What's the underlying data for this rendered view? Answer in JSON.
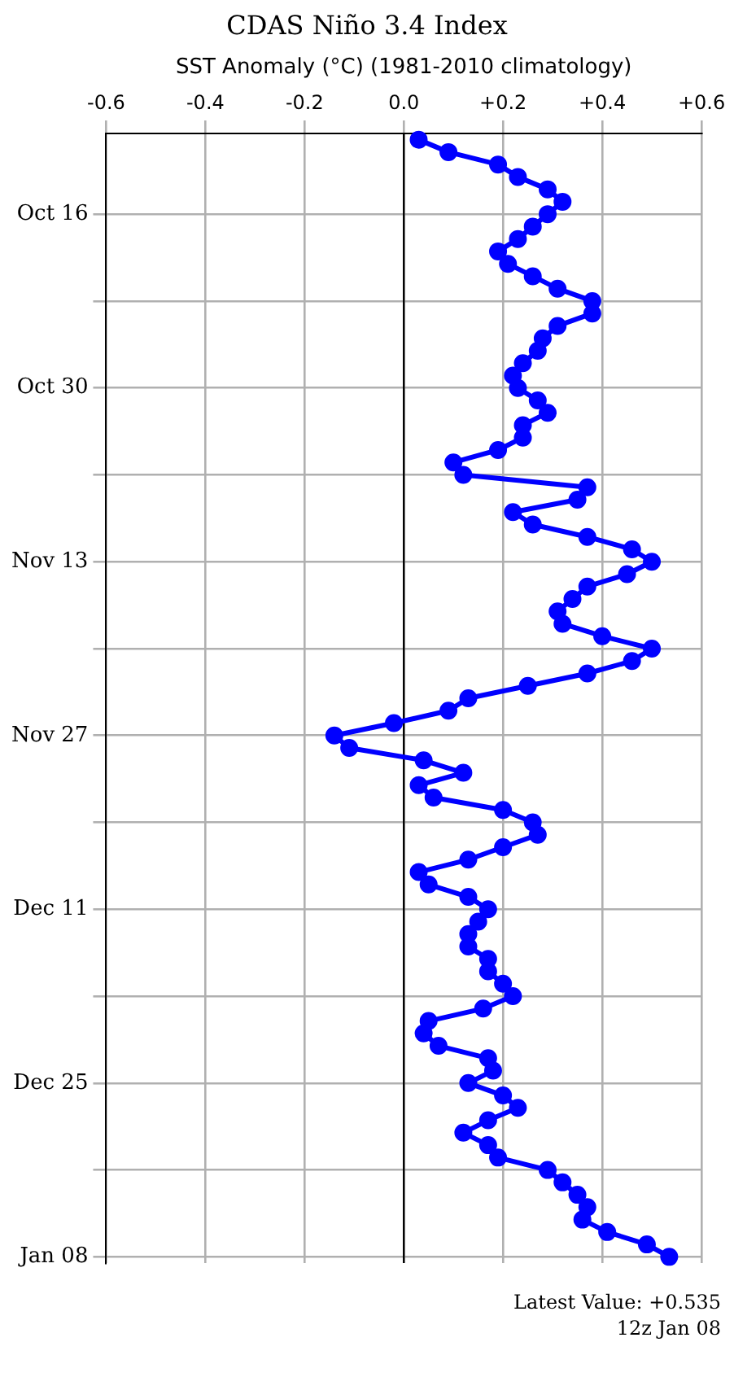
{
  "chart_data": {
    "type": "line",
    "orientation": "horizontal",
    "title": "CDAS Niño 3.4 Index",
    "xlabel": "SST Anomaly (°C) (1981-2010 climatology)",
    "annotations": [
      "Latest Value: +0.535",
      "12z Jan 08"
    ],
    "categories": [
      null,
      null,
      null,
      null,
      null,
      null,
      "Oct 16",
      null,
      null,
      null,
      null,
      null,
      null,
      null,
      null,
      null,
      null,
      null,
      null,
      null,
      "Oct 30",
      null,
      null,
      null,
      null,
      null,
      null,
      null,
      null,
      null,
      null,
      null,
      null,
      null,
      "Nov 13",
      null,
      null,
      null,
      null,
      null,
      null,
      null,
      null,
      null,
      null,
      null,
      null,
      null,
      "Nov 27",
      null,
      null,
      null,
      null,
      null,
      null,
      null,
      null,
      null,
      null,
      null,
      null,
      null,
      "Dec 11",
      null,
      null,
      null,
      null,
      null,
      null,
      null,
      null,
      null,
      null,
      null,
      null,
      null,
      "Dec 25",
      null,
      null,
      null,
      null,
      null,
      null,
      null,
      null,
      null,
      null,
      null,
      null,
      null,
      "Jan 08"
    ],
    "series": [
      {
        "color": "#0000ff",
        "values": [
          0.03,
          0.09,
          0.19,
          0.23,
          0.29,
          0.32,
          0.29,
          0.26,
          0.23,
          0.19,
          0.21,
          0.26,
          0.31,
          0.38,
          0.38,
          0.31,
          0.28,
          0.27,
          0.24,
          0.22,
          0.23,
          0.27,
          0.29,
          0.24,
          0.24,
          0.19,
          0.1,
          0.12,
          0.37,
          0.35,
          0.22,
          0.26,
          0.37,
          0.46,
          0.5,
          0.45,
          0.37,
          0.34,
          0.31,
          0.32,
          0.4,
          0.5,
          0.46,
          0.37,
          0.25,
          0.13,
          0.09,
          -0.02,
          -0.14,
          -0.11,
          0.04,
          0.12,
          0.03,
          0.06,
          0.2,
          0.26,
          0.27,
          0.2,
          0.13,
          0.03,
          0.05,
          0.13,
          0.17,
          0.15,
          0.13,
          0.13,
          0.17,
          0.17,
          0.2,
          0.22,
          0.16,
          0.05,
          0.04,
          0.07,
          0.17,
          0.18,
          0.13,
          0.2,
          0.23,
          0.17,
          0.12,
          0.17,
          0.19,
          0.29,
          0.32,
          0.35,
          0.37,
          0.36,
          0.41,
          0.49,
          0.535
        ]
      }
    ],
    "xlim": [
      -0.6,
      0.6
    ],
    "xticks": [
      {
        "value": -0.6,
        "label": "-0.6"
      },
      {
        "value": -0.4,
        "label": "-0.4"
      },
      {
        "value": -0.2,
        "label": "-0.2"
      },
      {
        "value": 0,
        "label": "0.0"
      },
      {
        "value": 0.2,
        "label": "+0.2"
      },
      {
        "value": 0.4,
        "label": "+0.4"
      },
      {
        "value": 0.6,
        "label": "+0.6"
      }
    ],
    "ref_lines": [
      {
        "axis": "x",
        "value": 0,
        "color": "#000000"
      }
    ],
    "grid": true,
    "marker": "circle",
    "line_style": "solid"
  }
}
